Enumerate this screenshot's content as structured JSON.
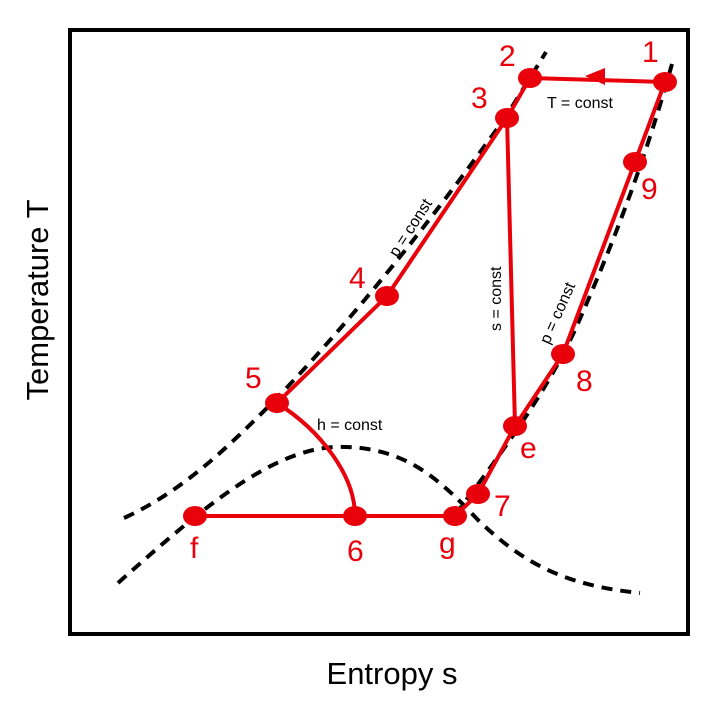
{
  "diagram": {
    "axes": {
      "x_label": "Entropy s",
      "y_label": "Temperature T"
    },
    "points": {
      "p1": "1",
      "p2": "2",
      "p3": "3",
      "p4": "4",
      "p5": "5",
      "p6": "6",
      "p7": "7",
      "p8": "8",
      "p9": "9",
      "pe": "e",
      "pf": "f",
      "pg": "g"
    },
    "annotations": {
      "t_const": "T = const",
      "p_const_left": "p = const",
      "s_const": "s = const",
      "p_const_right": "p = const",
      "h_const": "h = const"
    },
    "colors": {
      "process": "#e8000b",
      "curves": "#000000",
      "frame": "#000000"
    }
  }
}
